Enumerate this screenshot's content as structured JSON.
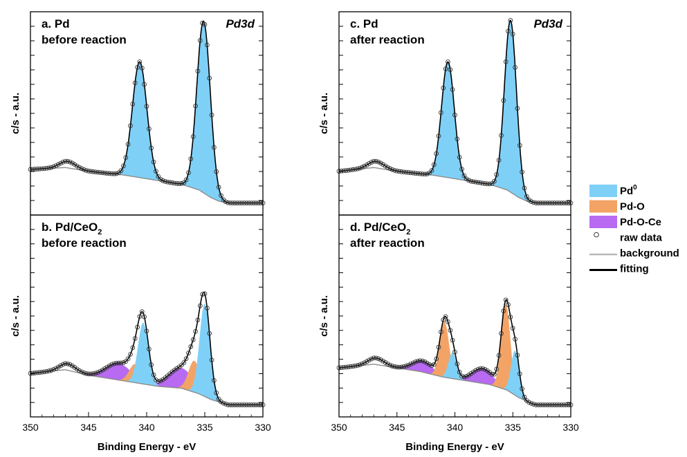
{
  "chart_data": {
    "type": "line",
    "xlabel": "Binding Energy - eV",
    "ylabel": "c/s - a.u.",
    "xlim": [
      350,
      330
    ],
    "x_ticks": [
      "350",
      "345",
      "340",
      "335",
      "330"
    ],
    "spectrum_label": "Pd3d",
    "legend": {
      "placement": "right",
      "entries": [
        {
          "key": "pd0",
          "label_main": "Pd",
          "label_sup": "0",
          "kind": "fill",
          "color": "#7fd0f7"
        },
        {
          "key": "pdo",
          "label_main": "Pd-O",
          "label_sup": "",
          "kind": "fill",
          "color": "#f3a366"
        },
        {
          "key": "pdoce",
          "label_main": "Pd-O-Ce",
          "label_sup": "",
          "kind": "fill",
          "color": "#b86af2"
        },
        {
          "key": "raw",
          "label_main": "raw data",
          "label_sup": "",
          "kind": "marker",
          "color": "#000000"
        },
        {
          "key": "bg",
          "label_main": "background",
          "label_sup": "",
          "kind": "line",
          "color": "#b8b8b8"
        },
        {
          "key": "fit",
          "label_main": "fitting",
          "label_sup": "",
          "kind": "line",
          "color": "#000000"
        }
      ]
    },
    "panels": [
      {
        "id": "a",
        "title_line1": "a. Pd",
        "title_line1_sub": "",
        "title_line2": "before reaction",
        "show_spectrum_label": true,
        "background": [
          [
            350,
            0.2
          ],
          [
            347,
            0.21
          ],
          [
            345,
            0.19
          ],
          [
            342,
            0.17
          ],
          [
            339,
            0.14
          ],
          [
            337,
            0.12
          ],
          [
            335.5,
            0.09
          ],
          [
            334.5,
            0.05
          ],
          [
            333.8,
            0.03
          ],
          [
            333,
            0.02
          ],
          [
            330,
            0.02
          ]
        ],
        "components": [
          {
            "key": "pd0",
            "peaks": [
              {
                "center": 340.6,
                "height": 0.62,
                "sigma": 0.62
              },
              {
                "center": 335.1,
                "height": 0.92,
                "sigma": 0.58
              }
            ]
          }
        ],
        "bumps": [
          {
            "center": 346.8,
            "height": 0.035,
            "sigma": 0.7
          }
        ]
      },
      {
        "id": "b",
        "title_line1": "b. Pd/CeO",
        "title_line1_sub": "2",
        "title_line2": "before reaction",
        "show_spectrum_label": false,
        "background": [
          [
            350,
            0.19
          ],
          [
            347,
            0.21
          ],
          [
            345,
            0.18
          ],
          [
            343,
            0.16
          ],
          [
            341,
            0.14
          ],
          [
            339,
            0.12
          ],
          [
            337,
            0.11
          ],
          [
            335.5,
            0.08
          ],
          [
            334.5,
            0.05
          ],
          [
            333.5,
            0.03
          ],
          [
            333,
            0.02
          ],
          [
            330,
            0.02
          ]
        ],
        "components": [
          {
            "key": "pd0",
            "peaks": [
              {
                "center": 340.3,
                "height": 0.33,
                "sigma": 0.45
              },
              {
                "center": 335.0,
                "height": 0.5,
                "sigma": 0.45
              }
            ]
          },
          {
            "key": "pdo",
            "peaks": [
              {
                "center": 341.0,
                "height": 0.1,
                "sigma": 0.5
              },
              {
                "center": 335.9,
                "height": 0.17,
                "sigma": 0.5
              }
            ]
          },
          {
            "key": "pdoce",
            "peaks": [
              {
                "center": 342.4,
                "height": 0.09,
                "sigma": 1.1
              },
              {
                "center": 337.0,
                "height": 0.11,
                "sigma": 1.1
              }
            ]
          }
        ],
        "bumps": [
          {
            "center": 346.8,
            "height": 0.035,
            "sigma": 0.7
          }
        ]
      },
      {
        "id": "c",
        "title_line1": "c. Pd",
        "title_line1_sub": "",
        "title_line2": "after reaction",
        "show_spectrum_label": true,
        "background": [
          [
            350,
            0.19
          ],
          [
            347,
            0.21
          ],
          [
            345,
            0.19
          ],
          [
            342,
            0.17
          ],
          [
            339,
            0.14
          ],
          [
            337,
            0.12
          ],
          [
            335.5,
            0.09
          ],
          [
            334.5,
            0.05
          ],
          [
            333.8,
            0.03
          ],
          [
            333,
            0.02
          ],
          [
            330,
            0.02
          ]
        ],
        "components": [
          {
            "key": "pd0",
            "peaks": [
              {
                "center": 340.6,
                "height": 0.62,
                "sigma": 0.55
              },
              {
                "center": 335.2,
                "height": 0.92,
                "sigma": 0.52
              }
            ]
          }
        ],
        "bumps": [
          {
            "center": 346.8,
            "height": 0.035,
            "sigma": 0.7
          }
        ]
      },
      {
        "id": "d",
        "title_line1": "d. Pd/CeO",
        "title_line1_sub": "2",
        "title_line2": "after reaction",
        "show_spectrum_label": false,
        "background": [
          [
            350,
            0.22
          ],
          [
            347,
            0.24
          ],
          [
            345,
            0.22
          ],
          [
            343,
            0.2
          ],
          [
            341,
            0.17
          ],
          [
            339,
            0.15
          ],
          [
            337,
            0.13
          ],
          [
            335.5,
            0.1
          ],
          [
            334.5,
            0.06
          ],
          [
            333.5,
            0.03
          ],
          [
            333,
            0.02
          ],
          [
            330,
            0.02
          ]
        ],
        "components": [
          {
            "key": "pd0",
            "peaks": [
              {
                "center": 340.2,
                "height": 0.14,
                "sigma": 0.35
              },
              {
                "center": 334.8,
                "height": 0.24,
                "sigma": 0.35
              }
            ]
          },
          {
            "key": "pdo",
            "peaks": [
              {
                "center": 340.9,
                "height": 0.3,
                "sigma": 0.4
              },
              {
                "center": 335.6,
                "height": 0.46,
                "sigma": 0.4
              }
            ]
          },
          {
            "key": "pdoce",
            "peaks": [
              {
                "center": 342.8,
                "height": 0.06,
                "sigma": 0.9
              },
              {
                "center": 337.6,
                "height": 0.08,
                "sigma": 0.9
              }
            ]
          }
        ],
        "bumps": [
          {
            "center": 346.8,
            "height": 0.035,
            "sigma": 0.7
          }
        ]
      }
    ]
  }
}
